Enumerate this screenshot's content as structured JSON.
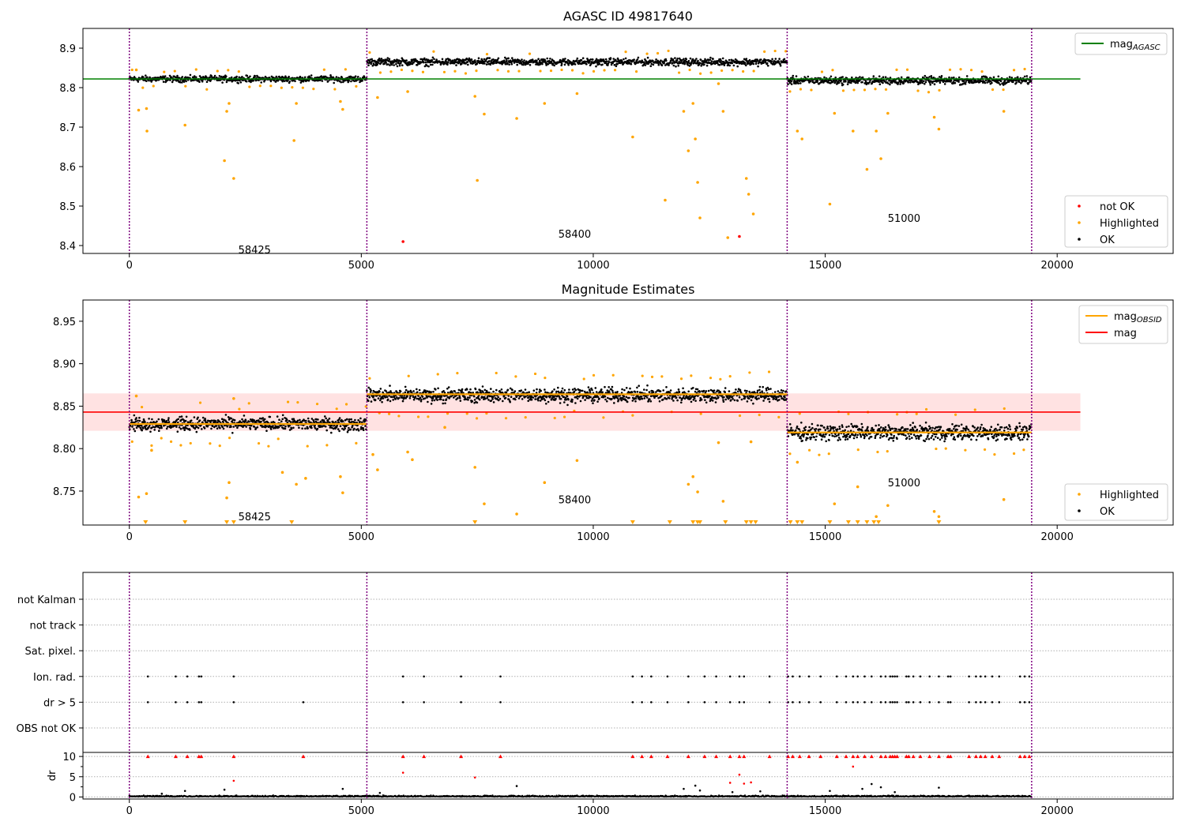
{
  "chart_data": [
    {
      "type": "scatter",
      "title": "AGASC ID 49817640",
      "xlim": [
        -1000,
        22500
      ],
      "ylim": [
        8.38,
        8.95
      ],
      "x_ticks": [
        0,
        5000,
        10000,
        15000,
        20000
      ],
      "x_tick_labels": [
        "0",
        "5000",
        "10000",
        "15000",
        "20000"
      ],
      "y_ticks": [
        8.4,
        8.5,
        8.6,
        8.7,
        8.8,
        8.9
      ],
      "y_tick_labels": [
        "8.4",
        "8.5",
        "8.6",
        "8.7",
        "8.8",
        "8.9"
      ],
      "segment_boundaries": [
        0,
        5120,
        14180,
        19450
      ],
      "segments": [
        {
          "x_start": 0,
          "x_end": 5120,
          "level": 8.822,
          "spread": 0.012,
          "label": "58425",
          "label_x": 2700,
          "label_y": 8.39
        },
        {
          "x_start": 5120,
          "x_end": 14180,
          "level": 8.865,
          "spread": 0.014,
          "label": "58400",
          "label_x": 9600,
          "label_y": 8.43
        },
        {
          "x_start": 14180,
          "x_end": 19450,
          "level": 8.818,
          "spread": 0.015,
          "label": "51000",
          "label_x": 16700,
          "label_y": 8.47
        }
      ],
      "reference_lines": [
        {
          "name": "mag_AGASC",
          "value": 8.822,
          "x_start": -1000,
          "x_end": 20500,
          "color": "#008000"
        }
      ],
      "series": [
        {
          "name": "not OK",
          "color": "#ff0000",
          "points": [
            [
              5900,
              8.41
            ],
            [
              13150,
              8.423
            ]
          ]
        },
        {
          "name": "Highlighted",
          "color": "#ffa500",
          "points": [
            [
              150,
              8.845
            ],
            [
              200,
              8.743
            ],
            [
              370,
              8.747
            ],
            [
              380,
              8.69
            ],
            [
              1200,
              8.705
            ],
            [
              2050,
              8.615
            ],
            [
              2100,
              8.74
            ],
            [
              2150,
              8.76
            ],
            [
              2250,
              8.57
            ],
            [
              3550,
              8.666
            ],
            [
              3600,
              8.76
            ],
            [
              4550,
              8.765
            ],
            [
              4600,
              8.745
            ],
            [
              5350,
              8.775
            ],
            [
              6000,
              8.79
            ],
            [
              7450,
              8.778
            ],
            [
              7500,
              8.565
            ],
            [
              7650,
              8.733
            ],
            [
              8350,
              8.722
            ],
            [
              8950,
              8.76
            ],
            [
              9650,
              8.785
            ],
            [
              10850,
              8.675
            ],
            [
              11550,
              8.515
            ],
            [
              11950,
              8.74
            ],
            [
              12050,
              8.64
            ],
            [
              12150,
              8.76
            ],
            [
              12200,
              8.67
            ],
            [
              12250,
              8.56
            ],
            [
              12300,
              8.47
            ],
            [
              12700,
              8.81
            ],
            [
              12800,
              8.74
            ],
            [
              12900,
              8.42
            ],
            [
              13300,
              8.57
            ],
            [
              13350,
              8.53
            ],
            [
              13450,
              8.48
            ],
            [
              14400,
              8.69
            ],
            [
              14500,
              8.67
            ],
            [
              15100,
              8.505
            ],
            [
              15200,
              8.735
            ],
            [
              15600,
              8.69
            ],
            [
              15900,
              8.593
            ],
            [
              16100,
              8.69
            ],
            [
              16200,
              8.62
            ],
            [
              16350,
              8.735
            ],
            [
              17350,
              8.725
            ],
            [
              17450,
              8.695
            ],
            [
              18850,
              8.74
            ]
          ]
        },
        {
          "name": "OK",
          "color": "#000000",
          "points": []
        }
      ],
      "legends": [
        {
          "position": "top-right",
          "entries": [
            {
              "label": "mag",
              "sub": "AGASC",
              "color": "#008000",
              "kind": "line"
            }
          ]
        },
        {
          "position": "bottom-right",
          "entries": [
            {
              "label": "not OK",
              "color": "#ff0000",
              "kind": "dot"
            },
            {
              "label": "Highlighted",
              "color": "#ffa500",
              "kind": "dot"
            },
            {
              "label": "OK",
              "color": "#000000",
              "kind": "dot"
            }
          ]
        }
      ]
    },
    {
      "type": "scatter",
      "title": "Magnitude Estimates",
      "xlim": [
        -1000,
        22500
      ],
      "ylim": [
        8.71,
        8.975
      ],
      "x_ticks": [
        0,
        5000,
        10000,
        15000,
        20000
      ],
      "x_tick_labels": [
        "0",
        "5000",
        "10000",
        "15000",
        "20000"
      ],
      "y_ticks": [
        8.75,
        8.8,
        8.85,
        8.9,
        8.95
      ],
      "y_tick_labels": [
        "8.75",
        "8.80",
        "8.85",
        "8.90",
        "8.95"
      ],
      "segment_boundaries": [
        0,
        5120,
        14180,
        19450
      ],
      "segments": [
        {
          "x_start": 0,
          "x_end": 5120,
          "level": 8.829,
          "spread": 0.012,
          "label": "58425",
          "label_x": 2700,
          "label_y": 8.72
        },
        {
          "x_start": 5120,
          "x_end": 14180,
          "level": 8.863,
          "spread": 0.013,
          "label": "58400",
          "label_x": 9600,
          "label_y": 8.74
        },
        {
          "x_start": 14180,
          "x_end": 19450,
          "level": 8.819,
          "spread": 0.014,
          "label": "51000",
          "label_x": 16700,
          "label_y": 8.76
        }
      ],
      "band": {
        "low": 8.821,
        "high": 8.865,
        "x_start": -1000,
        "x_end": 20500,
        "color": "#ffd6d6"
      },
      "reference_lines": [
        {
          "name": "mag",
          "value": 8.843,
          "x_start": -1000,
          "x_end": 20500,
          "color": "#ff0000"
        }
      ],
      "obsid_levels": [
        {
          "x_start": 0,
          "x_end": 5120,
          "value": 8.829
        },
        {
          "x_start": 5120,
          "x_end": 14180,
          "value": 8.864
        },
        {
          "x_start": 14180,
          "x_end": 19450,
          "value": 8.819
        }
      ],
      "series": [
        {
          "name": "Highlighted",
          "color": "#ffa500",
          "points": [
            [
              150,
              8.862
            ],
            [
              200,
              8.743
            ],
            [
              370,
              8.747
            ],
            [
              480,
              8.798
            ],
            [
              2100,
              8.742
            ],
            [
              2150,
              8.76
            ],
            [
              2250,
              8.859
            ],
            [
              3300,
              8.772
            ],
            [
              3600,
              8.758
            ],
            [
              3800,
              8.765
            ],
            [
              4550,
              8.767
            ],
            [
              4600,
              8.748
            ],
            [
              5250,
              8.793
            ],
            [
              5350,
              8.775
            ],
            [
              6000,
              8.796
            ],
            [
              6100,
              8.787
            ],
            [
              6800,
              8.825
            ],
            [
              7450,
              8.778
            ],
            [
              7650,
              8.735
            ],
            [
              8350,
              8.723
            ],
            [
              8950,
              8.76
            ],
            [
              9650,
              8.786
            ],
            [
              12050,
              8.758
            ],
            [
              12150,
              8.767
            ],
            [
              12250,
              8.749
            ],
            [
              12700,
              8.807
            ],
            [
              12800,
              8.738
            ],
            [
              13400,
              8.808
            ],
            [
              14400,
              8.784
            ],
            [
              15200,
              8.735
            ],
            [
              15700,
              8.755
            ],
            [
              16100,
              8.72
            ],
            [
              16350,
              8.733
            ],
            [
              17350,
              8.726
            ],
            [
              17450,
              8.72
            ],
            [
              18850,
              8.74
            ]
          ]
        },
        {
          "name": "OK",
          "color": "#000000",
          "points": []
        }
      ],
      "clipped_x": [
        350,
        1200,
        2100,
        2250,
        3500,
        7450,
        10850,
        11650,
        12150,
        12250,
        12300,
        12850,
        13300,
        13400,
        13500,
        14250,
        14400,
        14500,
        15100,
        15500,
        15700,
        15900,
        16050,
        16150,
        17450
      ],
      "legends": [
        {
          "position": "top-right",
          "entries": [
            {
              "label": "mag",
              "sub": "OBSID",
              "color": "#ffa500",
              "kind": "line"
            },
            {
              "label": "mag",
              "color": "#ff0000",
              "kind": "line"
            }
          ]
        },
        {
          "position": "bottom-right",
          "entries": [
            {
              "label": "Highlighted",
              "color": "#ffa500",
              "kind": "dot"
            },
            {
              "label": "OK",
              "color": "#000000",
              "kind": "dot"
            }
          ]
        }
      ]
    },
    {
      "type": "scatter",
      "title": "",
      "xlim": [
        -1000,
        22500
      ],
      "segment_boundaries": [
        0,
        5120,
        14180,
        19450
      ],
      "flag_rows": [
        "not Kalman",
        "not track",
        "Sat. pixel.",
        "Ion. rad.",
        "dr > 5",
        "OBS not OK"
      ],
      "flags": {
        "Ion. rad.": [
          400,
          1000,
          1250,
          1500,
          1550,
          2250,
          5900,
          6350,
          7150,
          8000,
          10850,
          11050,
          11250,
          11600,
          12050,
          12400,
          12650,
          12950,
          13150,
          13250,
          13800,
          14200,
          14300,
          14450,
          14650,
          14900,
          15250,
          15450,
          15600,
          15700,
          15850,
          16000,
          16200,
          16300,
          16400,
          16450,
          16500,
          16550,
          16750,
          16800,
          16900,
          17050,
          17250,
          17450,
          17650,
          17700,
          18100,
          18250,
          18350,
          18450,
          18600,
          18750,
          19200,
          19300,
          19400
        ],
        "dr > 5": [
          400,
          1000,
          1250,
          1500,
          1550,
          2250,
          3750,
          5900,
          6350,
          7150,
          8000,
          10850,
          11050,
          11250,
          11600,
          12050,
          12400,
          12650,
          12950,
          13150,
          13250,
          13800,
          14200,
          14300,
          14450,
          14650,
          14900,
          15250,
          15450,
          15600,
          15700,
          15850,
          16000,
          16200,
          16300,
          16400,
          16450,
          16500,
          16550,
          16750,
          16800,
          16900,
          17050,
          17250,
          17450,
          17650,
          17700,
          18100,
          18250,
          18350,
          18450,
          18600,
          18750,
          19200,
          19300,
          19400
        ]
      },
      "dr_panel": {
        "ylabel": "dr",
        "y_ticks": [
          0,
          5,
          10
        ],
        "y_tick_labels": [
          "0",
          "5",
          "10"
        ],
        "ylim": [
          -0.5,
          11
        ],
        "high_points": [
          [
            2250,
            4.0
          ],
          [
            5900,
            6.0
          ],
          [
            7450,
            4.8
          ],
          [
            12950,
            3.5
          ],
          [
            13150,
            5.5
          ],
          [
            13250,
            3.3
          ],
          [
            13400,
            3.6
          ],
          [
            15600,
            7.5
          ]
        ],
        "moderate_points": [
          [
            700,
            0.8
          ],
          [
            1200,
            1.5
          ],
          [
            2050,
            1.8
          ],
          [
            4600,
            2.0
          ],
          [
            5400,
            1.0
          ],
          [
            8350,
            2.7
          ],
          [
            11950,
            2.0
          ],
          [
            12200,
            2.8
          ],
          [
            12300,
            1.6
          ],
          [
            13000,
            1.2
          ],
          [
            13600,
            1.4
          ],
          [
            15100,
            1.5
          ],
          [
            15800,
            2.0
          ],
          [
            16000,
            3.2
          ],
          [
            16200,
            2.4
          ],
          [
            16500,
            1.2
          ],
          [
            17450,
            2.3
          ]
        ]
      },
      "x_ticks": [
        0,
        5000,
        10000,
        15000,
        20000
      ],
      "x_tick_labels": [
        "0",
        "5000",
        "10000",
        "15000",
        "20000"
      ]
    }
  ]
}
